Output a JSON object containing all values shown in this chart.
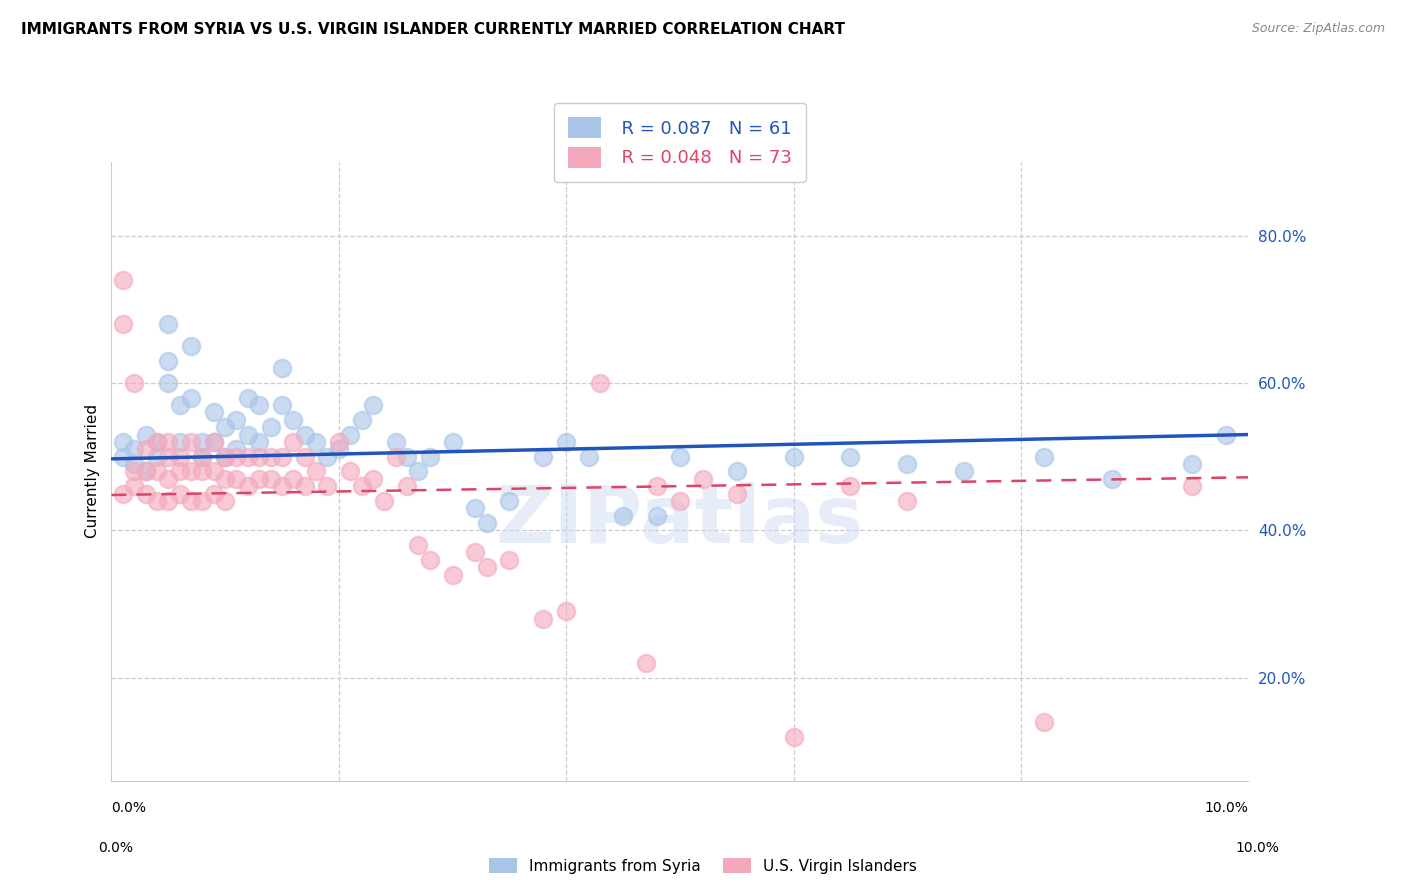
{
  "title": "IMMIGRANTS FROM SYRIA VS U.S. VIRGIN ISLANDER CURRENTLY MARRIED CORRELATION CHART",
  "source": "Source: ZipAtlas.com",
  "ylabel": "Currently Married",
  "ylabel_right_labels": [
    "20.0%",
    "40.0%",
    "60.0%",
    "80.0%"
  ],
  "ylabel_right_values": [
    0.2,
    0.4,
    0.6,
    0.8
  ],
  "xmin": 0.0,
  "xmax": 0.1,
  "ymin": 0.06,
  "ymax": 0.9,
  "legend_blue_R": "R = 0.087",
  "legend_blue_N": "N = 61",
  "legend_pink_R": "R = 0.048",
  "legend_pink_N": "N = 73",
  "blue_label": "Immigrants from Syria",
  "pink_label": "U.S. Virgin Islanders",
  "blue_color": "#a8c4e8",
  "pink_color": "#f4a8bc",
  "blue_line_color": "#2255bb",
  "pink_line_color": "#dd4466",
  "background_color": "#ffffff",
  "grid_color": "#cccccc",
  "title_fontsize": 11,
  "source_fontsize": 9,
  "watermark": "ZIPatlas",
  "blue_trend_x0": 0.0,
  "blue_trend_y0": 0.497,
  "blue_trend_x1": 0.1,
  "blue_trend_y1": 0.53,
  "pink_trend_x0": 0.0,
  "pink_trend_y0": 0.448,
  "pink_trend_x1": 0.1,
  "pink_trend_y1": 0.472,
  "blue_scatter_x": [
    0.001,
    0.001,
    0.002,
    0.002,
    0.003,
    0.003,
    0.004,
    0.004,
    0.005,
    0.005,
    0.005,
    0.006,
    0.006,
    0.007,
    0.007,
    0.008,
    0.008,
    0.009,
    0.009,
    0.01,
    0.01,
    0.011,
    0.011,
    0.012,
    0.012,
    0.013,
    0.013,
    0.014,
    0.015,
    0.015,
    0.016,
    0.017,
    0.018,
    0.019,
    0.02,
    0.021,
    0.022,
    0.023,
    0.025,
    0.026,
    0.027,
    0.028,
    0.03,
    0.032,
    0.033,
    0.035,
    0.038,
    0.04,
    0.042,
    0.045,
    0.048,
    0.05,
    0.055,
    0.06,
    0.065,
    0.07,
    0.075,
    0.082,
    0.088,
    0.095,
    0.098
  ],
  "blue_scatter_y": [
    0.52,
    0.5,
    0.51,
    0.49,
    0.53,
    0.48,
    0.52,
    0.5,
    0.68,
    0.63,
    0.6,
    0.57,
    0.52,
    0.65,
    0.58,
    0.52,
    0.5,
    0.56,
    0.52,
    0.54,
    0.5,
    0.55,
    0.51,
    0.58,
    0.53,
    0.57,
    0.52,
    0.54,
    0.62,
    0.57,
    0.55,
    0.53,
    0.52,
    0.5,
    0.51,
    0.53,
    0.55,
    0.57,
    0.52,
    0.5,
    0.48,
    0.5,
    0.52,
    0.43,
    0.41,
    0.44,
    0.5,
    0.52,
    0.5,
    0.42,
    0.42,
    0.5,
    0.48,
    0.5,
    0.5,
    0.49,
    0.48,
    0.5,
    0.47,
    0.49,
    0.53
  ],
  "pink_scatter_x": [
    0.001,
    0.001,
    0.001,
    0.002,
    0.002,
    0.002,
    0.003,
    0.003,
    0.003,
    0.004,
    0.004,
    0.004,
    0.005,
    0.005,
    0.005,
    0.005,
    0.006,
    0.006,
    0.006,
    0.007,
    0.007,
    0.007,
    0.008,
    0.008,
    0.008,
    0.009,
    0.009,
    0.009,
    0.01,
    0.01,
    0.01,
    0.011,
    0.011,
    0.012,
    0.012,
    0.013,
    0.013,
    0.014,
    0.014,
    0.015,
    0.015,
    0.016,
    0.016,
    0.017,
    0.017,
    0.018,
    0.019,
    0.02,
    0.021,
    0.022,
    0.023,
    0.024,
    0.025,
    0.026,
    0.027,
    0.028,
    0.03,
    0.032,
    0.033,
    0.035,
    0.038,
    0.04,
    0.043,
    0.047,
    0.048,
    0.05,
    0.052,
    0.055,
    0.06,
    0.065,
    0.07,
    0.082,
    0.095
  ],
  "pink_scatter_y": [
    0.74,
    0.68,
    0.45,
    0.6,
    0.48,
    0.46,
    0.51,
    0.48,
    0.45,
    0.52,
    0.48,
    0.44,
    0.52,
    0.5,
    0.47,
    0.44,
    0.5,
    0.48,
    0.45,
    0.52,
    0.48,
    0.44,
    0.5,
    0.48,
    0.44,
    0.52,
    0.48,
    0.45,
    0.5,
    0.47,
    0.44,
    0.5,
    0.47,
    0.5,
    0.46,
    0.5,
    0.47,
    0.5,
    0.47,
    0.5,
    0.46,
    0.52,
    0.47,
    0.5,
    0.46,
    0.48,
    0.46,
    0.52,
    0.48,
    0.46,
    0.47,
    0.44,
    0.5,
    0.46,
    0.38,
    0.36,
    0.34,
    0.37,
    0.35,
    0.36,
    0.28,
    0.29,
    0.6,
    0.22,
    0.46,
    0.44,
    0.47,
    0.45,
    0.12,
    0.46,
    0.44,
    0.14,
    0.46
  ]
}
